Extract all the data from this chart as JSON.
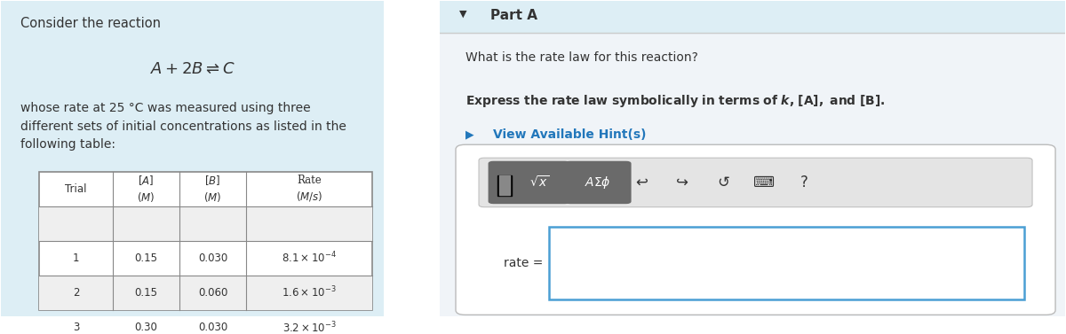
{
  "bg_left": "#ddeef5",
  "bg_right": "#f0f4f8",
  "bg_white": "#ffffff",
  "bg_gray_toolbar": "#e8e8e8",
  "bg_gray_btn": "#6a6a6a",
  "border_color": "#c0c0c0",
  "blue_border": "#4a9fd4",
  "blue_link": "#2277bb",
  "text_dark": "#333333",
  "text_black": "#000000",
  "left_panel_text1": "Consider the reaction",
  "left_panel_text2": "whose rate at 25 °C was measured using three\ndifferent sets of initial concentrations as listed in the\nfollowing table:",
  "table_rows": [
    [
      "1",
      "0.15",
      "0.030",
      "8.1e-4"
    ],
    [
      "2",
      "0.15",
      "0.060",
      "1.6e-3"
    ],
    [
      "3",
      "0.30",
      "0.030",
      "3.2e-3"
    ]
  ],
  "rate_exponents": [
    "-4",
    "-3",
    "-3"
  ],
  "rate_mantissas": [
    "8.1",
    "1.6",
    "3.2"
  ],
  "part_a_label": "Part A",
  "question_text": "What is the rate law for this reaction?",
  "hint_text": "View Available Hint(s)",
  "rate_label": "rate ="
}
